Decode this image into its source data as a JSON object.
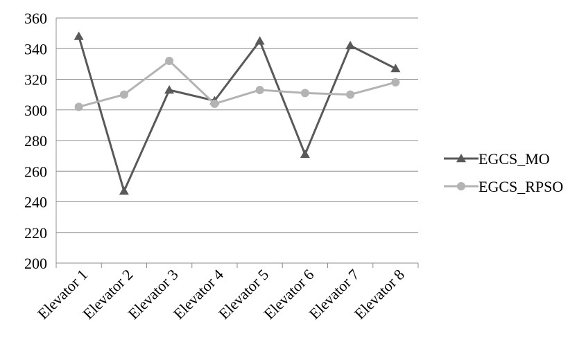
{
  "chart_data": {
    "type": "line",
    "title": "",
    "xlabel": "",
    "ylabel": "",
    "categories": [
      "Elevator 1",
      "Elevator 2",
      "Elevator 3",
      "Elevator 4",
      "Elevator 5",
      "Elevator 6",
      "Elevator 7",
      "Elevator 8"
    ],
    "ylim": [
      200,
      360
    ],
    "yticks": [
      "200",
      "220",
      "240",
      "260",
      "280",
      "300",
      "320",
      "340",
      "360"
    ],
    "grid": true,
    "legend_position": "right",
    "series": [
      {
        "name": "EGCS_MO",
        "marker": "triangle",
        "color": "#595959",
        "values": [
          348,
          247,
          313,
          306,
          345,
          271,
          342,
          327
        ]
      },
      {
        "name": "EGCS_RPSO",
        "marker": "circle",
        "color": "#b3b3b3",
        "values": [
          302,
          310,
          332,
          304,
          313,
          311,
          310,
          318
        ]
      }
    ]
  }
}
